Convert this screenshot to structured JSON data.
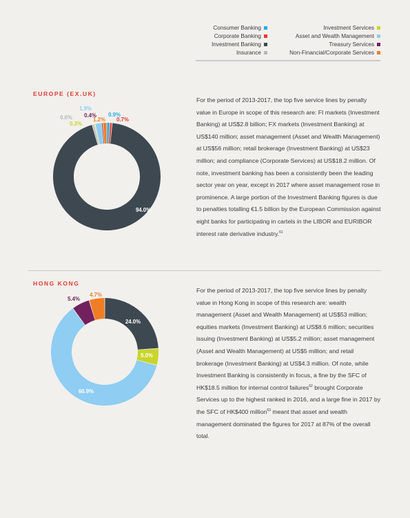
{
  "legend": {
    "left": [
      {
        "label": "Consumer Banking",
        "color": "#29abe2"
      },
      {
        "label": "Corporate Banking",
        "color": "#e8392c"
      },
      {
        "label": "Investment Banking",
        "color": "#3d4851"
      },
      {
        "label": "Insurance",
        "color": "#b6b9bb"
      }
    ],
    "right": [
      {
        "label": "Investment Services",
        "color": "#c8d52a"
      },
      {
        "label": "Asset and Wealth Management",
        "color": "#8fcdf2"
      },
      {
        "label": "Treasury Services",
        "color": "#73215e"
      },
      {
        "label": "Non-Financial/Corporate Services",
        "color": "#f07d25"
      }
    ]
  },
  "sections": {
    "europe": {
      "title": "EUROPE (EX.UK)",
      "text": "For the period of 2013-2017, the top five service lines by penalty value in Europe in scope of this research are: FI markets (Investment Banking) at US$2.8 billion; FX markets (Investment Banking) at US$140 million; asset management (Asset and Wealth Management) at US$56 million; retail brokerage (Investment Banking) at US$23 million; and compliance (Corporate Services) at US$18.2 million. Of note, investment banking has been a consistently been the leading sector year on year, except in 2017 where asset management rose in prominence. A large portion of the Investment Banking figures is due to penalties totalling €1.5 billion by the European Commission against eight banks for participating in cartels in the LIBOR and EURIBOR interest rate derivative industry.",
      "footnote": "61"
    },
    "hongkong": {
      "title": "HONG KONG",
      "text_a": "For the period of 2013-2017, the top five service lines by penalty value in Hong Kong in scope of this research are: wealth management (Asset and Wealth Management) at US$53 million; equities markets (Investment Banking) at US$8.6 million; securities issuing (Investment Banking) at US$5.2 million; asset management (Asset and Wealth Management) at US$5 million; and retail brokerage (Investment Banking) at US$4.3 million. Of note, while Investment Banking is consistently in focus, a fine by the SFC of HK$18.5 million for internal control failures",
      "footnote_a": "62",
      "text_b": " brought Corporate Services up to the highest ranked in 2016, and a large fine in 2017 by the SFC of HK$400 million",
      "footnote_b": "63",
      "text_c": " meant that asset and wealth management dominated the figures for 2017 at 87% of the overall total."
    }
  },
  "chart_data": [
    {
      "type": "pie",
      "title": "EUROPE (EX.UK)",
      "donut": true,
      "slices": [
        {
          "category": "Consumer Banking",
          "value": 0.9,
          "label": "0.9%",
          "color": "#29abe2"
        },
        {
          "category": "Corporate Banking",
          "value": 0.7,
          "label": "0.7%",
          "color": "#e8392c"
        },
        {
          "category": "Investment Banking",
          "value": 94.0,
          "label": "94.0%",
          "color": "#3d4851"
        },
        {
          "category": "Insurance",
          "value": 0.6,
          "label": "0.6%",
          "color": "#b6b9bb"
        },
        {
          "category": "Investment Services",
          "value": 0.3,
          "label": "0.3%",
          "color": "#c8d52a"
        },
        {
          "category": "Asset and Wealth Management",
          "value": 1.9,
          "label": "1.9%",
          "color": "#8fcdf2"
        },
        {
          "category": "Treasury Services",
          "value": 0.4,
          "label": "0.4%",
          "color": "#73215e"
        },
        {
          "category": "Non-Financial/Corporate Services",
          "value": 1.2,
          "label": "1.2%",
          "color": "#f07d25"
        }
      ]
    },
    {
      "type": "pie",
      "title": "HONG KONG",
      "donut": true,
      "slices": [
        {
          "category": "Investment Banking",
          "value": 24.0,
          "label": "24.0%",
          "color": "#3d4851"
        },
        {
          "category": "Investment Services",
          "value": 5.0,
          "label": "5.0%",
          "color": "#c8d52a"
        },
        {
          "category": "Asset and Wealth Management",
          "value": 60.9,
          "label": "60.9%",
          "color": "#8fcdf2"
        },
        {
          "category": "Treasury Services",
          "value": 5.4,
          "label": "5.4%",
          "color": "#73215e"
        },
        {
          "category": "Non-Financial/Corporate Services",
          "value": 4.7,
          "label": "4.7%",
          "color": "#f07d25"
        }
      ]
    }
  ]
}
